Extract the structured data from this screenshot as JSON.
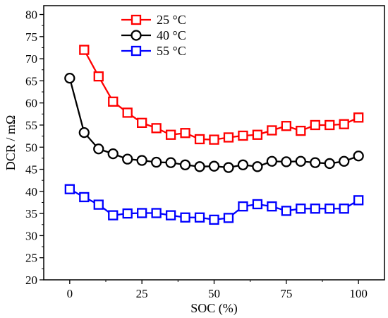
{
  "chart_data": {
    "type": "line",
    "title": "",
    "xlabel": "SOC (%)",
    "ylabel": "DCR / mΩ",
    "xlim": [
      -9,
      109
    ],
    "ylim": [
      20,
      82
    ],
    "xticks": [
      0,
      25,
      50,
      75,
      100
    ],
    "yticks": [
      20,
      25,
      30,
      35,
      40,
      45,
      50,
      55,
      60,
      65,
      70,
      75,
      80
    ],
    "grid": false,
    "legend_position": "top-left",
    "series": [
      {
        "name": "25 °C",
        "color": "#ff0000",
        "marker": "square",
        "x": [
          5,
          10,
          15,
          20,
          25,
          30,
          35,
          40,
          45,
          50,
          55,
          60,
          65,
          70,
          75,
          80,
          85,
          90,
          95,
          100
        ],
        "values": [
          72.0,
          66.0,
          60.3,
          57.8,
          55.5,
          54.3,
          52.8,
          53.2,
          51.8,
          51.7,
          52.2,
          52.6,
          52.8,
          53.8,
          54.8,
          53.7,
          55.0,
          55.0,
          55.2,
          56.7
        ]
      },
      {
        "name": "40 °C",
        "color": "#000000",
        "marker": "circle",
        "x": [
          0,
          5,
          10,
          15,
          20,
          25,
          30,
          35,
          40,
          45,
          50,
          55,
          60,
          65,
          70,
          75,
          80,
          85,
          90,
          95,
          100
        ],
        "values": [
          65.6,
          53.3,
          49.6,
          48.5,
          47.3,
          47.0,
          46.6,
          46.5,
          46.0,
          45.6,
          45.7,
          45.4,
          46.0,
          45.6,
          46.8,
          46.7,
          46.8,
          46.5,
          46.3,
          46.8,
          48.0
        ]
      },
      {
        "name": "55 °C",
        "color": "#0000ff",
        "marker": "square",
        "x": [
          0,
          5,
          10,
          15,
          20,
          25,
          30,
          35,
          40,
          45,
          50,
          55,
          60,
          65,
          70,
          75,
          80,
          85,
          90,
          95,
          100
        ],
        "values": [
          40.5,
          38.7,
          37.0,
          34.6,
          35.0,
          35.1,
          35.1,
          34.6,
          34.1,
          34.1,
          33.6,
          34.0,
          36.6,
          37.1,
          36.6,
          35.6,
          36.1,
          36.1,
          36.1,
          36.1,
          38.0
        ]
      }
    ]
  }
}
